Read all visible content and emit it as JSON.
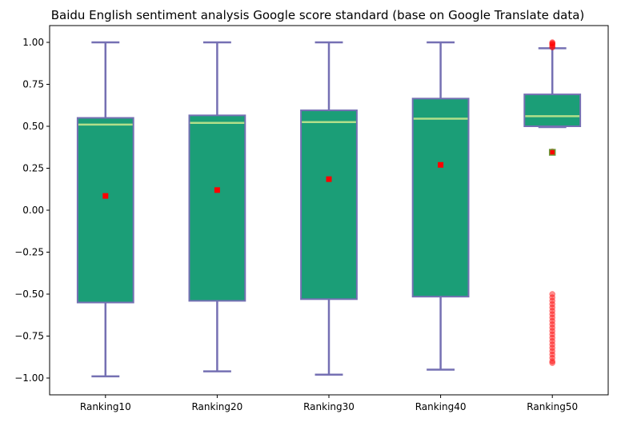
{
  "chart_data": {
    "type": "box",
    "title": "Baidu English sentiment analysis Google score standard (base on Google Translate data)",
    "xlabel": "",
    "ylabel": "",
    "ylim": [
      -1.1,
      1.1
    ],
    "yticks": [
      -1.0,
      -0.75,
      -0.5,
      -0.25,
      0.0,
      0.25,
      0.5,
      0.75,
      1.0
    ],
    "ytick_labels": [
      "−1.00",
      "−0.75",
      "−0.50",
      "−0.25",
      "0.00",
      "0.25",
      "0.50",
      "0.75",
      "1.00"
    ],
    "grid": false,
    "categories": [
      "Ranking10",
      "Ranking20",
      "Ranking30",
      "Ranking40",
      "Ranking50"
    ],
    "boxes": [
      {
        "label": "Ranking10",
        "whisker_low": -0.99,
        "q1": -0.55,
        "median": 0.51,
        "q3": 0.55,
        "whisker_high": 1.0,
        "mean": 0.085,
        "outliers": []
      },
      {
        "label": "Ranking20",
        "whisker_low": -0.96,
        "q1": -0.54,
        "median": 0.52,
        "q3": 0.565,
        "whisker_high": 1.0,
        "mean": 0.12,
        "outliers": []
      },
      {
        "label": "Ranking30",
        "whisker_low": -0.98,
        "q1": -0.53,
        "median": 0.525,
        "q3": 0.595,
        "whisker_high": 1.0,
        "mean": 0.185,
        "outliers": []
      },
      {
        "label": "Ranking40",
        "whisker_low": -0.95,
        "q1": -0.515,
        "median": 0.545,
        "q3": 0.665,
        "whisker_high": 1.0,
        "mean": 0.27,
        "outliers": []
      },
      {
        "label": "Ranking50",
        "whisker_low": 0.495,
        "q1": 0.5,
        "median": 0.56,
        "q3": 0.69,
        "whisker_high": 0.965,
        "mean": 0.345,
        "outliers": [
          1.0,
          0.995,
          0.99,
          0.985,
          0.975,
          0.97,
          0.35,
          -0.5,
          -0.52,
          -0.54,
          -0.56,
          -0.58,
          -0.6,
          -0.62,
          -0.64,
          -0.66,
          -0.68,
          -0.7,
          -0.72,
          -0.74,
          -0.76,
          -0.78,
          -0.8,
          -0.82,
          -0.84,
          -0.86,
          -0.88,
          -0.9,
          -0.91
        ]
      }
    ],
    "colors": {
      "box_fill": "#1b9e77",
      "box_edge": "#7570b3",
      "median": "#b2df8a",
      "mean_marker": "#ff0000",
      "outlier": "#ff0000"
    }
  }
}
